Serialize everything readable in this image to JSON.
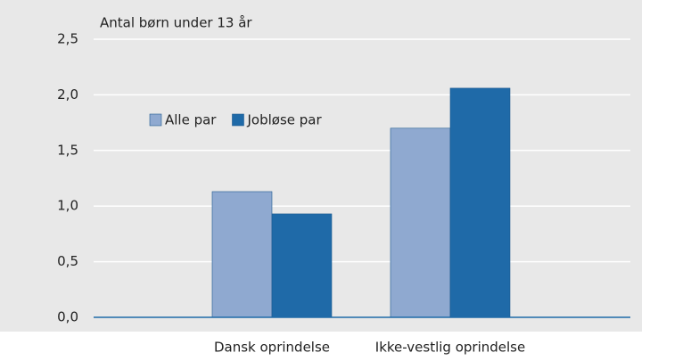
{
  "chart_data": {
    "type": "bar",
    "y_axis_label": "Antal børn under 13 år",
    "categories": [
      "Dansk oprindelse",
      "Ikke-vestlig oprindelse"
    ],
    "series": [
      {
        "name": "Alle par",
        "color": "#8fa9d0",
        "values": [
          1.13,
          1.7
        ]
      },
      {
        "name": "Jobløse par",
        "color": "#1f6aa8",
        "values": [
          0.93,
          2.06
        ]
      }
    ],
    "ylim": [
      0,
      2.5
    ],
    "yticks": [
      {
        "value": 0,
        "label": "0,0"
      },
      {
        "value": 0.5,
        "label": "0,5"
      },
      {
        "value": 1,
        "label": "1,0"
      },
      {
        "value": 1.5,
        "label": "1,5"
      },
      {
        "value": 2,
        "label": "2,0"
      },
      {
        "value": 2.5,
        "label": "2,5"
      }
    ],
    "grid": true
  }
}
